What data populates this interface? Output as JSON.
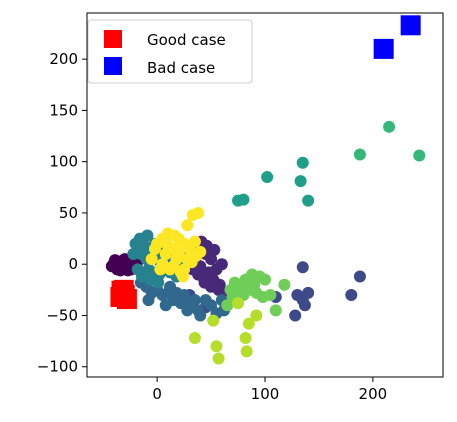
{
  "chart_data": {
    "type": "scatter",
    "xlim": [
      -65,
      265
    ],
    "ylim": [
      -110,
      245
    ],
    "xticks": [
      0,
      100,
      200
    ],
    "yticks": [
      -100,
      -50,
      0,
      50,
      100,
      150,
      200
    ],
    "x_tick_labels": [
      "0",
      "100",
      "200"
    ],
    "y_tick_labels": [
      "−100",
      "−50",
      "0",
      "50",
      "100",
      "150",
      "200"
    ],
    "grid": false,
    "legend_placement": "top-left",
    "legend": [
      {
        "label": "Good case",
        "color": "#ff0000",
        "marker": "square"
      },
      {
        "label": "Bad case",
        "color": "#0000ff",
        "marker": "square"
      }
    ],
    "series": [
      {
        "color": "#440154",
        "marker": "circle",
        "points": [
          [
            -40,
            1
          ],
          [
            -38,
            -3
          ],
          [
            -36,
            2
          ],
          [
            -35,
            -1
          ],
          [
            -33,
            3
          ],
          [
            -32,
            -4
          ],
          [
            -30,
            0
          ],
          [
            -28,
            -2
          ],
          [
            -26,
            2
          ],
          [
            -24,
            -5
          ],
          [
            -22,
            1
          ],
          [
            -20,
            -3
          ],
          [
            -18,
            4
          ],
          [
            -42,
            -2
          ],
          [
            -39,
            4
          ],
          [
            -34,
            -6
          ],
          [
            -30,
            5
          ],
          [
            -27,
            -6
          ],
          [
            -25,
            3
          ],
          [
            -23,
            -1
          ],
          [
            -21,
            5
          ],
          [
            -37,
            -5
          ],
          [
            -29,
            -3
          ],
          [
            -31,
            3
          ],
          [
            -19,
            -1
          ]
        ]
      },
      {
        "color": "#482878",
        "marker": "circle",
        "points": [
          [
            30,
            8
          ],
          [
            35,
            3
          ],
          [
            40,
            -2
          ],
          [
            45,
            10
          ],
          [
            48,
            -8
          ],
          [
            50,
            5
          ],
          [
            52,
            -15
          ],
          [
            55,
            -5
          ],
          [
            58,
            -20
          ],
          [
            60,
            0
          ],
          [
            62,
            -28
          ],
          [
            42,
            -12
          ],
          [
            46,
            18
          ],
          [
            53,
            14
          ],
          [
            57,
            -25
          ],
          [
            50,
            -22
          ],
          [
            44,
            -18
          ],
          [
            38,
            -10
          ],
          [
            36,
            16
          ],
          [
            33,
            -5
          ],
          [
            41,
            22
          ]
        ]
      },
      {
        "color": "#3e4989",
        "marker": "circle",
        "points": [
          [
            135,
            -3
          ],
          [
            130,
            -30
          ],
          [
            135,
            -35
          ],
          [
            140,
            -28
          ],
          [
            137,
            -40
          ],
          [
            128,
            -50
          ],
          [
            180,
            -30
          ],
          [
            188,
            -12
          ],
          [
            110,
            -32
          ],
          [
            30,
            -30
          ],
          [
            45,
            -42
          ],
          [
            72,
            -28
          ]
        ]
      },
      {
        "color": "#31688e",
        "marker": "circle",
        "points": [
          [
            -15,
            -18
          ],
          [
            -10,
            -22
          ],
          [
            -5,
            -28
          ],
          [
            0,
            -25
          ],
          [
            5,
            -30
          ],
          [
            10,
            -28
          ],
          [
            15,
            -35
          ],
          [
            18,
            -28
          ],
          [
            25,
            -30
          ],
          [
            30,
            -40
          ],
          [
            35,
            -35
          ],
          [
            38,
            -45
          ],
          [
            40,
            -50
          ],
          [
            45,
            -35
          ],
          [
            50,
            -40
          ],
          [
            55,
            -48
          ],
          [
            60,
            -35
          ],
          [
            62,
            -45
          ],
          [
            65,
            -40
          ],
          [
            -8,
            -35
          ],
          [
            8,
            -40
          ],
          [
            12,
            -22
          ],
          [
            22,
            -38
          ],
          [
            28,
            -45
          ]
        ]
      },
      {
        "color": "#26828e",
        "marker": "circle",
        "points": [
          [
            -20,
            20
          ],
          [
            -15,
            10
          ],
          [
            -12,
            18
          ],
          [
            -10,
            5
          ],
          [
            -8,
            -5
          ],
          [
            -5,
            12
          ],
          [
            -3,
            -8
          ],
          [
            0,
            8
          ],
          [
            2,
            -10
          ],
          [
            5,
            15
          ],
          [
            -18,
            -5
          ],
          [
            -22,
            10
          ],
          [
            -14,
            -12
          ],
          [
            -6,
            -15
          ],
          [
            3,
            2
          ],
          [
            8,
            -3
          ],
          [
            10,
            10
          ],
          [
            12,
            -8
          ],
          [
            15,
            5
          ],
          [
            18,
            -12
          ],
          [
            20,
            2
          ],
          [
            -16,
            25
          ],
          [
            -2,
            20
          ],
          [
            7,
            20
          ],
          [
            22,
            -6
          ],
          [
            -9,
            28
          ],
          [
            1,
            -18
          ]
        ]
      },
      {
        "color": "#1f9e89",
        "marker": "circle",
        "points": [
          [
            135,
            99
          ],
          [
            133,
            81
          ],
          [
            140,
            62
          ],
          [
            102,
            85
          ],
          [
            75,
            62
          ],
          [
            80,
            63
          ]
        ]
      },
      {
        "color": "#35b779",
        "marker": "circle",
        "points": [
          [
            215,
            134
          ],
          [
            243,
            106
          ],
          [
            188,
            107
          ]
        ]
      },
      {
        "color": "#6ece58",
        "marker": "circle",
        "points": [
          [
            88,
            -10
          ],
          [
            95,
            -12
          ],
          [
            82,
            -15
          ],
          [
            100,
            -15
          ],
          [
            90,
            -20
          ],
          [
            85,
            -25
          ],
          [
            78,
            -22
          ],
          [
            72,
            -18
          ],
          [
            75,
            -28
          ],
          [
            80,
            -30
          ],
          [
            92,
            -28
          ],
          [
            98,
            -32
          ],
          [
            70,
            -32
          ],
          [
            68,
            -25
          ],
          [
            105,
            -30
          ],
          [
            110,
            -45
          ],
          [
            118,
            -20
          ],
          [
            65,
            -40
          ]
        ]
      },
      {
        "color": "#b5de2b",
        "marker": "circle",
        "points": [
          [
            35,
            -72
          ],
          [
            52,
            -55
          ],
          [
            55,
            -80
          ],
          [
            57,
            -92
          ],
          [
            82,
            -72
          ],
          [
            83,
            -85
          ],
          [
            85,
            -58
          ],
          [
            92,
            -50
          ],
          [
            75,
            -38
          ]
        ]
      },
      {
        "color": "#fde725",
        "marker": "circle",
        "points": [
          [
            -5,
            5
          ],
          [
            0,
            20
          ],
          [
            5,
            25
          ],
          [
            10,
            18
          ],
          [
            15,
            15
          ],
          [
            20,
            25
          ],
          [
            25,
            20
          ],
          [
            30,
            15
          ],
          [
            35,
            22
          ],
          [
            40,
            12
          ],
          [
            5,
            0
          ],
          [
            12,
            -5
          ],
          [
            18,
            5
          ],
          [
            22,
            -8
          ],
          [
            28,
            5
          ],
          [
            8,
            10
          ],
          [
            15,
            -2
          ],
          [
            25,
            -5
          ],
          [
            32,
            2
          ],
          [
            3,
            -5
          ],
          [
            10,
            30
          ],
          [
            20,
            10
          ],
          [
            28,
            38
          ],
          [
            33,
            48
          ],
          [
            38,
            50
          ],
          [
            -2,
            15
          ],
          [
            16,
            28
          ],
          [
            24,
            -12
          ],
          [
            36,
            8
          ]
        ]
      },
      {
        "color": "#ff0000",
        "marker": "square",
        "size": "large",
        "points": [
          [
            -30,
            -30
          ],
          [
            -33,
            -26
          ],
          [
            -28,
            -34
          ],
          [
            -31,
            -25
          ],
          [
            -34,
            -32
          ]
        ]
      },
      {
        "color": "#0000ff",
        "marker": "square",
        "size": "large",
        "points": [
          [
            210,
            210
          ],
          [
            235,
            233
          ]
        ]
      }
    ]
  }
}
